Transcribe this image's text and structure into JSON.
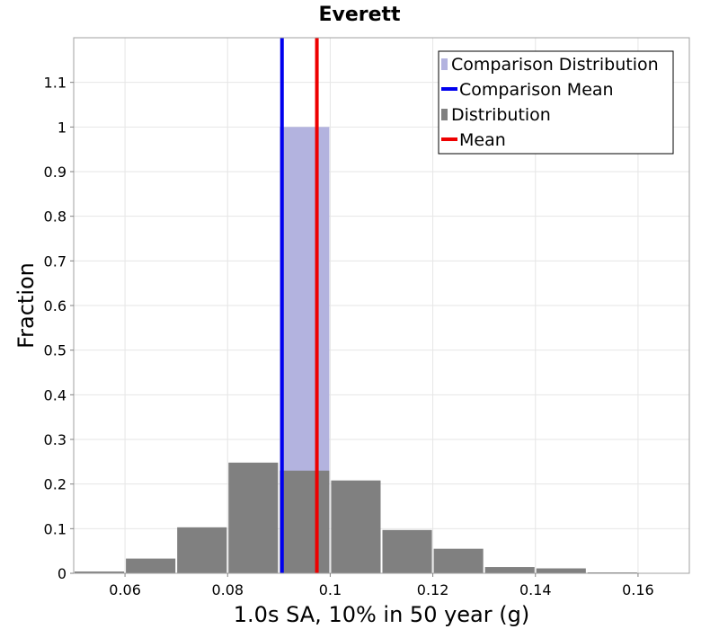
{
  "chart_data": {
    "type": "bar",
    "title": "Everett",
    "xlabel": "1.0s SA, 10% in 50 year (g)",
    "ylabel": "Fraction",
    "xlim": [
      0.05,
      0.17
    ],
    "ylim": [
      0,
      1.2
    ],
    "x_ticks": [
      0.06,
      0.08,
      0.1,
      0.12,
      0.14,
      0.16
    ],
    "x_tick_labels": [
      "0.06",
      "0.08",
      "0.1",
      "0.12",
      "0.14",
      "0.16"
    ],
    "y_ticks": [
      0,
      0.1,
      0.2,
      0.3,
      0.4,
      0.5,
      0.6,
      0.7,
      0.8,
      0.9,
      1,
      1.1
    ],
    "y_tick_labels": [
      "0",
      "0.1",
      "0.2",
      "0.3",
      "0.4",
      "0.5",
      "0.6",
      "0.7",
      "0.8",
      "0.9",
      "1",
      "1.1"
    ],
    "grid": true,
    "legend_position": "top-right",
    "series": [
      {
        "name": "Comparison Distribution",
        "kind": "bar",
        "color": "#b3b3df",
        "bars": [
          {
            "x_start": 0.09,
            "x_end": 0.1,
            "value": 1.0
          }
        ]
      },
      {
        "name": "Comparison Mean",
        "kind": "vline",
        "color": "#0000ee",
        "x": 0.0906
      },
      {
        "name": "Distribution",
        "kind": "bar",
        "color": "#808080",
        "bars": [
          {
            "x_start": 0.05,
            "x_end": 0.06,
            "value": 0.004
          },
          {
            "x_start": 0.06,
            "x_end": 0.07,
            "value": 0.033
          },
          {
            "x_start": 0.07,
            "x_end": 0.08,
            "value": 0.103
          },
          {
            "x_start": 0.08,
            "x_end": 0.09,
            "value": 0.248
          },
          {
            "x_start": 0.09,
            "x_end": 0.1,
            "value": 0.23
          },
          {
            "x_start": 0.1,
            "x_end": 0.11,
            "value": 0.208
          },
          {
            "x_start": 0.11,
            "x_end": 0.12,
            "value": 0.097
          },
          {
            "x_start": 0.12,
            "x_end": 0.13,
            "value": 0.055
          },
          {
            "x_start": 0.13,
            "x_end": 0.14,
            "value": 0.014
          },
          {
            "x_start": 0.14,
            "x_end": 0.15,
            "value": 0.011
          },
          {
            "x_start": 0.15,
            "x_end": 0.16,
            "value": 0.002
          },
          {
            "x_start": 0.16,
            "x_end": 0.17,
            "value": 0.001
          }
        ]
      },
      {
        "name": "Mean",
        "kind": "vline",
        "color": "#ee0000",
        "x": 0.0974
      }
    ]
  }
}
